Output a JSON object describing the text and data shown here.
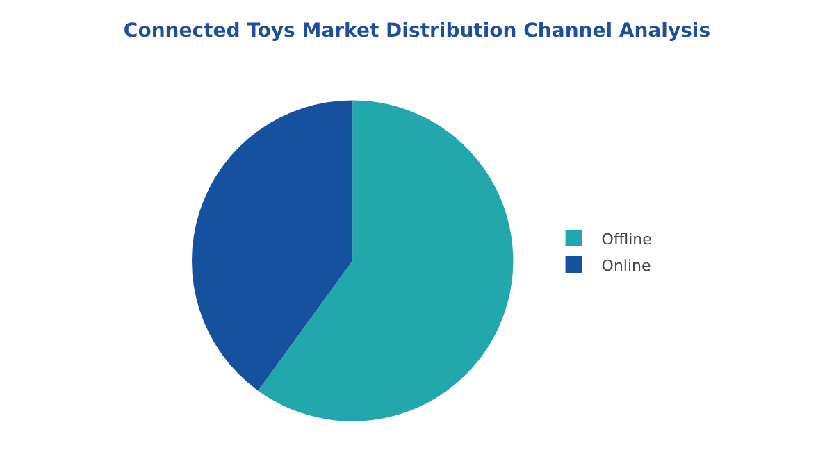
{
  "chart_data": {
    "type": "pie",
    "title": "Connected Toys Market Distribution Channel Analysis",
    "categories": [
      "Offline",
      "Online"
    ],
    "values": [
      60,
      40
    ],
    "colors": [
      "#22a7ad",
      "#1651a0"
    ],
    "legend": "right"
  }
}
